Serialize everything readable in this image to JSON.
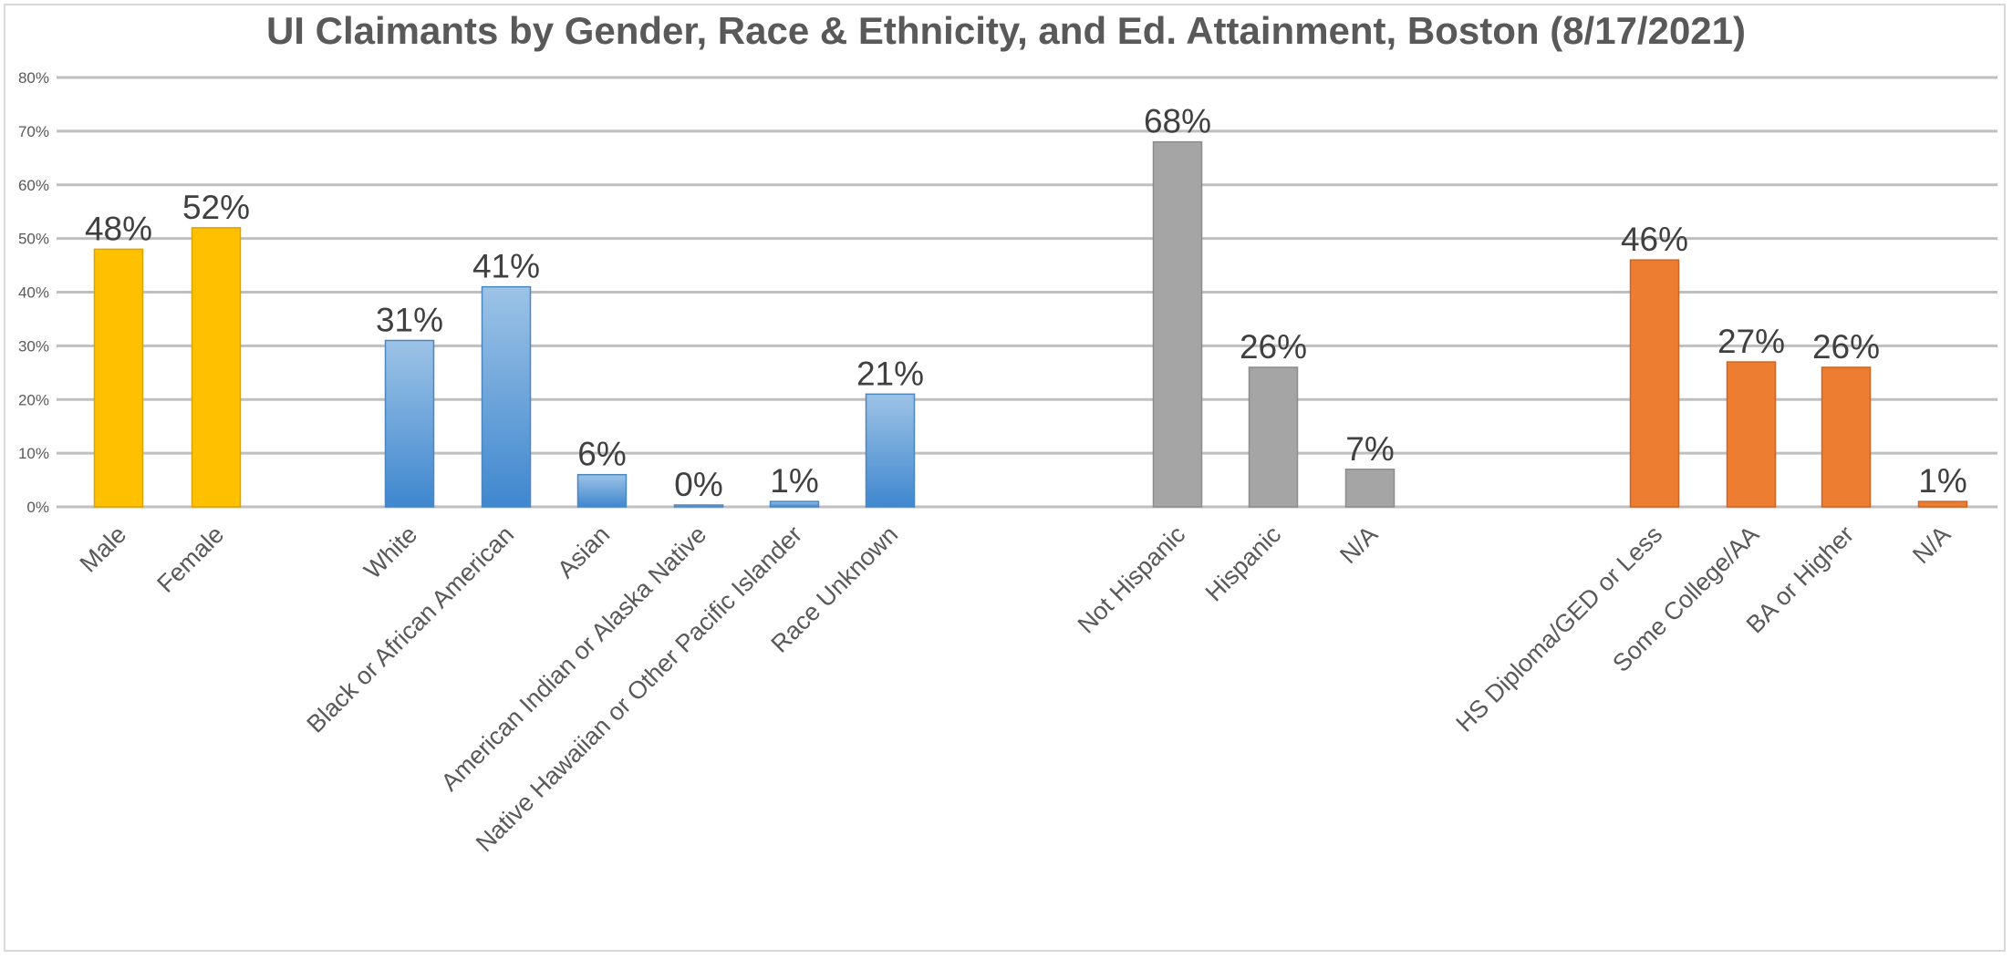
{
  "chart_data": {
    "type": "bar",
    "title": "UI Claimants by Gender, Race & Ethnicity, and Ed. Attainment,  Boston (8/17/2021)",
    "xlabel": "",
    "ylabel": "",
    "ylim": [
      0,
      0.8
    ],
    "yticks": [
      "0%",
      "10%",
      "20%",
      "30%",
      "40%",
      "50%",
      "60%",
      "70%",
      "80%"
    ],
    "grid": true,
    "legend": "none",
    "categories": [
      "Male",
      "Female",
      "White",
      "Black or African American",
      "Asian",
      "American Indian or Alaska Native",
      "Native Hawaiian or Other Pacific Islander",
      "Race Unknown",
      "Not Hispanic",
      "Hispanic",
      "N/A",
      "HS Diploma/GED or Less",
      "Some College/AA",
      "BA or Higher",
      "N/A"
    ],
    "values": [
      0.48,
      0.52,
      0.31,
      0.41,
      0.06,
      0.0,
      0.01,
      0.21,
      0.68,
      0.26,
      0.07,
      0.46,
      0.27,
      0.26,
      0.01
    ],
    "data_labels": [
      "48%",
      "52%",
      "31%",
      "41%",
      "6%",
      "0%",
      "1%",
      "21%",
      "68%",
      "26%",
      "7%",
      "46%",
      "27%",
      "26%",
      "1%"
    ],
    "groups": [
      {
        "color": "#ffc000",
        "stroke": "#d9a400",
        "count": 2
      },
      {
        "color": "#5b9bd5",
        "stroke": "#4a86c0",
        "count": 6
      },
      {
        "color": "#a5a5a5",
        "stroke": "#8c8c8c",
        "count": 3
      },
      {
        "color": "#ed7d31",
        "stroke": "#c9672a",
        "count": 4
      }
    ]
  }
}
